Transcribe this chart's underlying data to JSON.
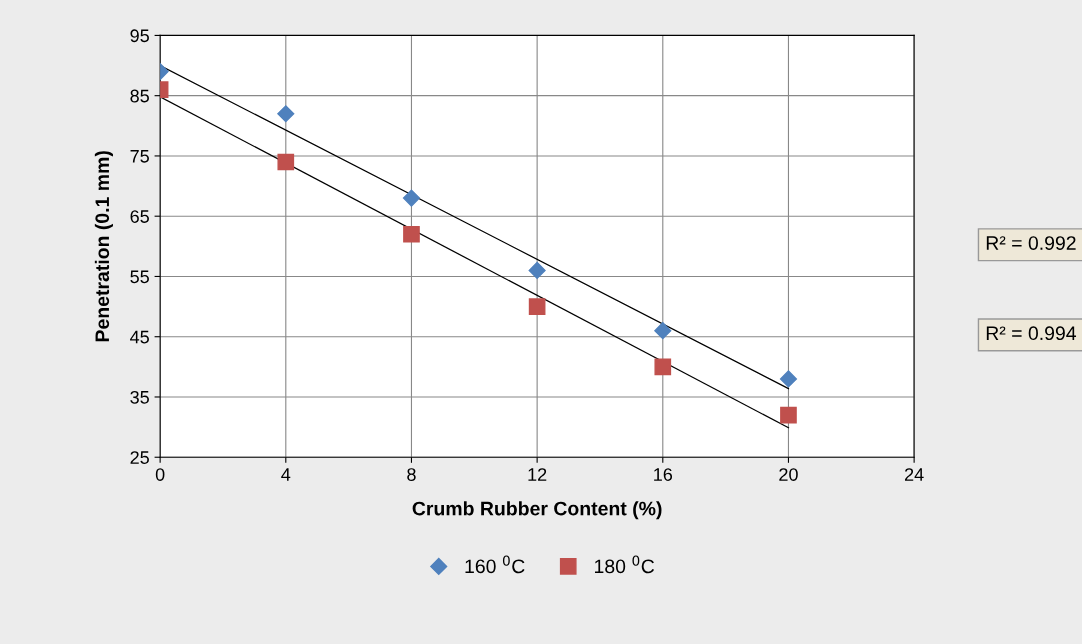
{
  "chart_data": {
    "type": "scatter",
    "xlabel": "Crumb Rubber Content (%)",
    "ylabel": "Penetration (0.1 mm)",
    "xlim": [
      0,
      24
    ],
    "xticks": [
      0,
      4,
      8,
      12,
      16,
      20,
      24
    ],
    "ylim": [
      25,
      95
    ],
    "yticks": [
      25,
      35,
      45,
      55,
      65,
      75,
      85,
      95
    ],
    "grid": true,
    "legend": "bottom",
    "series": [
      {
        "name": "160 $^{0}$C",
        "color": "#4f81bd",
        "marker": "diamond",
        "x": [
          0,
          4,
          8,
          12,
          16,
          20
        ],
        "values": [
          89,
          82,
          68,
          56,
          46,
          38
        ]
      },
      {
        "name": "180 $^{0}$C",
        "color": "#c0504d",
        "marker": "square",
        "x": [
          0,
          4,
          8,
          12,
          16,
          20
        ],
        "values": [
          86,
          74,
          62,
          50,
          40,
          32
        ]
      },
      {
        "type": "line",
        "color": "#000000",
        "marker": "none",
        "x": [
          0,
          20
        ],
        "values": [
          90,
          36.4
        ]
      },
      {
        "type": "line",
        "color": "#000000",
        "marker": "none",
        "x": [
          0,
          20
        ],
        "values": [
          84.8,
          29.9
        ]
      }
    ],
    "annotations": [
      "R² = 0.992",
      "R² = 0.994"
    ]
  }
}
